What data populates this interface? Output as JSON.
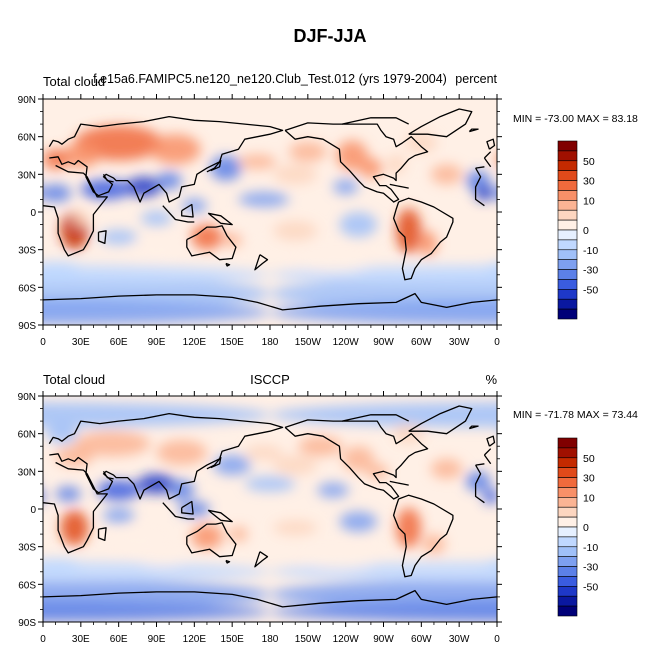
{
  "figure": {
    "title": "DJF-JJA"
  },
  "panels": [
    {
      "left_label": "Total cloud",
      "center_label": "f.e15a6.FAMIPC5.ne120_ne120.Club_Test.012 (yrs 1979-2004)",
      "right_label": "percent",
      "stats": "MIN = -73.00 MAX =  83.18"
    },
    {
      "left_label": "Total cloud",
      "center_label": "ISCCP",
      "right_label": "%",
      "stats": "MIN = -71.78 MAX =  73.44"
    }
  ],
  "axes": {
    "lat_labels": [
      "90N",
      "60N",
      "30N",
      "0",
      "30S",
      "60S",
      "90S"
    ],
    "lon_labels": [
      "0",
      "30E",
      "60E",
      "90E",
      "120E",
      "150E",
      "180",
      "150W",
      "120W",
      "90W",
      "60W",
      "30W",
      "0"
    ]
  },
  "colorbar": {
    "labels": [
      "50",
      "30",
      "10",
      "0",
      "-10",
      "-30",
      "-50"
    ],
    "colors": [
      "#800000",
      "#a01000",
      "#c42a00",
      "#e04a1a",
      "#f06a3c",
      "#f89068",
      "#fbb494",
      "#fdd6c0",
      "#fff0e6",
      "#e6f0ff",
      "#c0d8ff",
      "#a0c0f8",
      "#7ea0f0",
      "#5c80e8",
      "#3a5ce0",
      "#1e38c8",
      "#0a18a0",
      "#000078"
    ]
  },
  "map_data": {
    "field": "Total cloud DJF-JJA difference (percent)",
    "regions": [
      {
        "name": "northern-eurasia",
        "sign": "positive"
      },
      {
        "name": "north-africa-arabia",
        "sign": "negative"
      },
      {
        "name": "southern-africa",
        "sign": "positive"
      },
      {
        "name": "australia",
        "sign": "positive"
      },
      {
        "name": "south-america",
        "sign": "positive"
      },
      {
        "name": "north-america",
        "sign": "positive"
      },
      {
        "name": "southern-ocean",
        "sign": "negative"
      }
    ]
  }
}
